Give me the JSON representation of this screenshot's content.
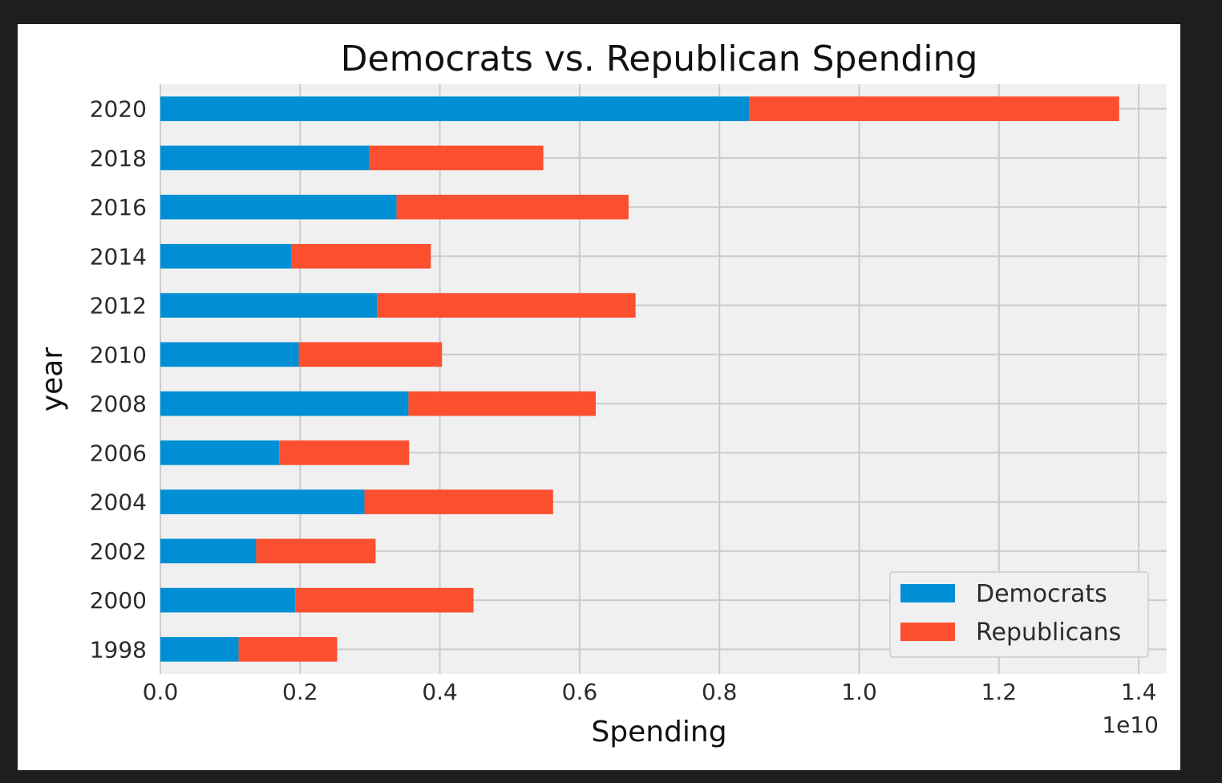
{
  "chart_data": {
    "type": "bar",
    "orientation": "horizontal",
    "stacked": true,
    "title": "Democrats vs. Republican Spending",
    "xlabel": "Spending",
    "ylabel": "year",
    "x_offset_label": "1e10",
    "xlim": [
      0,
      1.44
    ],
    "xticks": [
      "0.0",
      "0.2",
      "0.4",
      "0.6",
      "0.8",
      "1.0",
      "1.2",
      "1.4"
    ],
    "categories": [
      "1998",
      "2000",
      "2002",
      "2004",
      "2006",
      "2008",
      "2010",
      "2012",
      "2014",
      "2016",
      "2018",
      "2020"
    ],
    "series": [
      {
        "name": "Democrats",
        "color": "#008fd5",
        "values": [
          0.112,
          0.193,
          0.137,
          0.292,
          0.17,
          0.355,
          0.198,
          0.31,
          0.187,
          0.338,
          0.299,
          0.843
        ]
      },
      {
        "name": "Republicans",
        "color": "#fc4f30",
        "values": [
          0.141,
          0.255,
          0.171,
          0.27,
          0.186,
          0.268,
          0.205,
          0.37,
          0.2,
          0.332,
          0.249,
          0.529
        ]
      }
    ],
    "grid": true,
    "legend_position": "lower right"
  }
}
